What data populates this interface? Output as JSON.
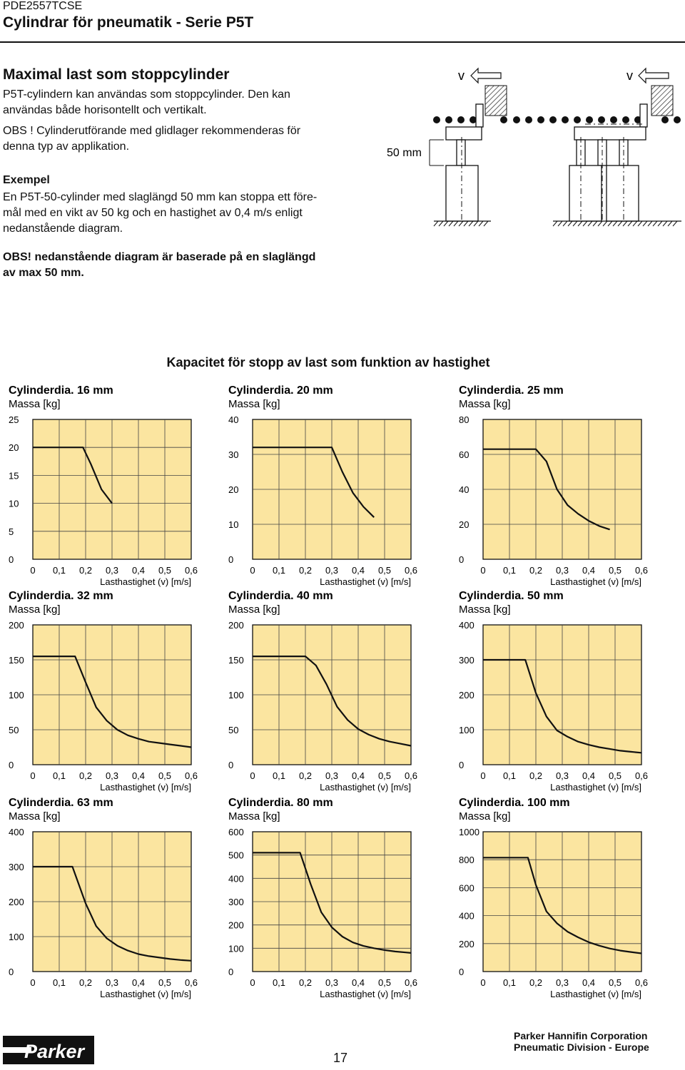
{
  "header": {
    "doc_code": "PDE2557TCSE",
    "title": "Cylindrar för pneumatik - Serie P5T"
  },
  "section": {
    "heading": "Maximal last som stoppcylinder",
    "intro_lines": [
      "P5T-cylindern kan användas som stoppcylinder. Den kan",
      "användas både horisontellt och vertikalt."
    ],
    "obs1_lines": [
      "OBS ! Cylinderutförande med glidlager rekommenderas för",
      "denna typ av applikation."
    ],
    "example_heading": "Exempel",
    "example_lines": [
      "En P5T-50-cylinder med slaglängd 50 mm kan stoppa ett före-",
      "mål med en vikt av 50 kg och en hastighet av 0,4 m/s enligt",
      "nedanstående diagram."
    ],
    "obs2_lines": [
      "OBS! nedanstående diagram är baserade på en slaglängd",
      "av max 50 mm."
    ]
  },
  "diagram": {
    "velocity_label_left": "v",
    "velocity_label_right": "v",
    "stroke_label": "50 mm"
  },
  "charts_title": "Kapacitet för stopp av last som funktion av hastighet",
  "axis_text": {
    "ylabel": "Massa [kg]",
    "xlabel": "Lasthastighet (v) [m/s]",
    "x_ticks": [
      "0",
      "0,1",
      "0,2",
      "0,3",
      "0,4",
      "0,5",
      "0,6"
    ]
  },
  "chart_data": [
    {
      "type": "line",
      "title": "Cylinderdia. 16 mm",
      "xlabel": "Lasthastighet (v) [m/s]",
      "ylabel": "Massa [kg]",
      "xlim": [
        0,
        0.6
      ],
      "ylim": [
        0,
        25
      ],
      "y_ticks": [
        "25",
        "20",
        "15",
        "10",
        "5",
        "0"
      ],
      "x": [
        0,
        0.1,
        0.19,
        0.22,
        0.26,
        0.3
      ],
      "values": [
        20,
        20,
        20,
        17,
        12.5,
        10
      ],
      "grid": true
    },
    {
      "type": "line",
      "title": "Cylinderdia. 20 mm",
      "xlabel": "Lasthastighet (v) [m/s]",
      "ylabel": "Massa [kg]",
      "xlim": [
        0,
        0.6
      ],
      "ylim": [
        0,
        40
      ],
      "y_ticks": [
        "40",
        "30",
        "20",
        "10",
        "0"
      ],
      "x": [
        0,
        0.1,
        0.2,
        0.3,
        0.34,
        0.38,
        0.42,
        0.46
      ],
      "values": [
        32,
        32,
        32,
        32,
        25,
        19,
        15,
        12
      ],
      "grid": true
    },
    {
      "type": "line",
      "title": "Cylinderdia. 25 mm",
      "xlabel": "Lasthastighet (v) [m/s]",
      "ylabel": "Massa [kg]",
      "xlim": [
        0,
        0.6
      ],
      "ylim": [
        0,
        80
      ],
      "y_ticks": [
        "80",
        "60",
        "40",
        "20",
        "0"
      ],
      "x": [
        0,
        0.1,
        0.2,
        0.24,
        0.28,
        0.32,
        0.36,
        0.4,
        0.44,
        0.48
      ],
      "values": [
        63,
        63,
        63,
        56,
        40,
        31,
        26,
        22,
        19,
        17
      ],
      "grid": true
    },
    {
      "type": "line",
      "title": "Cylinderdia. 32 mm",
      "xlabel": "Lasthastighet (v) [m/s]",
      "ylabel": "Massa [kg]",
      "xlim": [
        0,
        0.6
      ],
      "ylim": [
        0,
        200
      ],
      "y_ticks": [
        "200",
        "150",
        "100",
        "50",
        "0"
      ],
      "x": [
        0,
        0.1,
        0.16,
        0.2,
        0.24,
        0.28,
        0.32,
        0.36,
        0.4,
        0.44,
        0.48,
        0.52,
        0.56,
        0.6
      ],
      "values": [
        155,
        155,
        155,
        118,
        82,
        63,
        50,
        42,
        37,
        33,
        31,
        29,
        27,
        25
      ],
      "grid": true
    },
    {
      "type": "line",
      "title": "Cylinderdia. 40 mm",
      "xlabel": "Lasthastighet (v) [m/s]",
      "ylabel": "Massa [kg]",
      "xlim": [
        0,
        0.6
      ],
      "ylim": [
        0,
        200
      ],
      "y_ticks": [
        "200",
        "150",
        "100",
        "50",
        "0"
      ],
      "x": [
        0,
        0.1,
        0.2,
        0.24,
        0.28,
        0.32,
        0.36,
        0.4,
        0.44,
        0.48,
        0.52,
        0.56,
        0.6
      ],
      "values": [
        155,
        155,
        155,
        142,
        115,
        83,
        64,
        51,
        43,
        37,
        33,
        30,
        27
      ],
      "grid": true
    },
    {
      "type": "line",
      "title": "Cylinderdia. 50 mm",
      "xlabel": "Lasthastighet (v) [m/s]",
      "ylabel": "Massa [kg]",
      "xlim": [
        0,
        0.6
      ],
      "ylim": [
        0,
        400
      ],
      "y_ticks": [
        "400",
        "300",
        "200",
        "100",
        "0"
      ],
      "x": [
        0,
        0.1,
        0.16,
        0.2,
        0.24,
        0.28,
        0.32,
        0.36,
        0.4,
        0.44,
        0.48,
        0.52,
        0.56,
        0.6
      ],
      "values": [
        300,
        300,
        300,
        205,
        138,
        98,
        80,
        66,
        57,
        50,
        45,
        40,
        37,
        34
      ],
      "grid": true
    },
    {
      "type": "line",
      "title": "Cylinderdia. 63 mm",
      "xlabel": "Lasthastighet (v) [m/s]",
      "ylabel": "Massa [kg]",
      "xlim": [
        0,
        0.6
      ],
      "ylim": [
        0,
        400
      ],
      "y_ticks": [
        "400",
        "300",
        "200",
        "100",
        "0"
      ],
      "x": [
        0,
        0.1,
        0.15,
        0.2,
        0.24,
        0.28,
        0.32,
        0.36,
        0.4,
        0.44,
        0.48,
        0.52,
        0.56,
        0.6
      ],
      "values": [
        300,
        300,
        300,
        195,
        130,
        95,
        74,
        60,
        50,
        44,
        40,
        36,
        33,
        31
      ],
      "grid": true
    },
    {
      "type": "line",
      "title": "Cylinderdia. 80 mm",
      "xlabel": "Lasthastighet (v) [m/s]",
      "ylabel": "Massa [kg]",
      "xlim": [
        0,
        0.6
      ],
      "ylim": [
        0,
        600
      ],
      "y_ticks": [
        "600",
        "500",
        "400",
        "300",
        "200",
        "100",
        "0"
      ],
      "x": [
        0,
        0.1,
        0.18,
        0.22,
        0.26,
        0.3,
        0.34,
        0.38,
        0.42,
        0.46,
        0.5,
        0.54,
        0.58,
        0.6
      ],
      "values": [
        510,
        510,
        510,
        375,
        255,
        190,
        150,
        125,
        110,
        100,
        92,
        86,
        82,
        80
      ],
      "grid": true
    },
    {
      "type": "line",
      "title": "Cylinderdia. 100 mm",
      "xlabel": "Lasthastighet (v) [m/s]",
      "ylabel": "Massa [kg]",
      "xlim": [
        0,
        0.6
      ],
      "ylim": [
        0,
        1000
      ],
      "y_ticks": [
        "1000",
        "800",
        "600",
        "400",
        "200",
        "0"
      ],
      "x": [
        0,
        0.1,
        0.17,
        0.2,
        0.24,
        0.28,
        0.32,
        0.36,
        0.4,
        0.44,
        0.48,
        0.52,
        0.56,
        0.6
      ],
      "values": [
        815,
        815,
        815,
        620,
        430,
        345,
        285,
        245,
        210,
        185,
        165,
        150,
        140,
        130
      ],
      "grid": true
    }
  ],
  "footer": {
    "logo_text": "Parker",
    "page_number": "17",
    "company_line1": "Parker Hannifin Corporation",
    "company_line2": "Pneumatic Division - Europe"
  },
  "colors": {
    "chart_fill": "#fbe5a0",
    "grid": "#444444",
    "curve": "#111111"
  }
}
